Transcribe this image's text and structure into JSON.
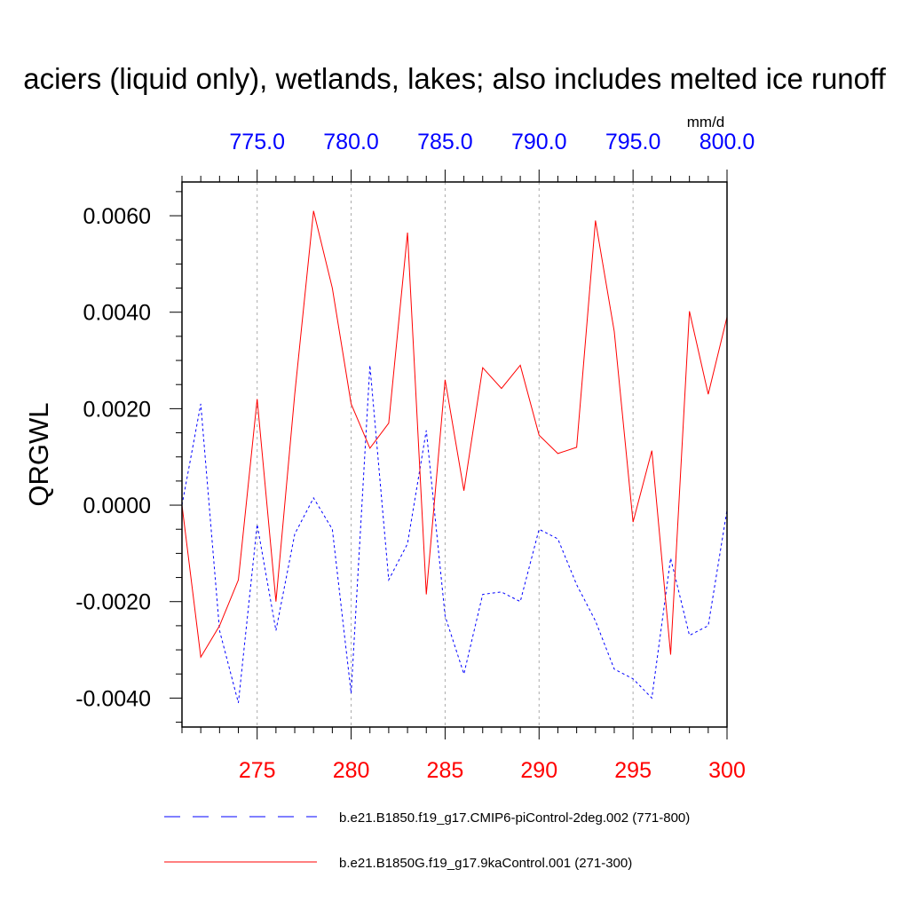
{
  "chart_data": {
    "type": "line",
    "title": "aciers (liquid only), wetlands, lakes; also includes melted ice runoff",
    "units": "mm/d",
    "ylabel": "QRGWL",
    "ylim": [
      -0.0046,
      0.0067
    ],
    "yticks": [
      -0.004,
      -0.002,
      0.0,
      0.002,
      0.004,
      0.006
    ],
    "yticklabels": [
      "-0.0040",
      "-0.0020",
      "0.0000",
      "0.0020",
      "0.0040",
      "0.0060"
    ],
    "x_bottom": {
      "range": [
        271,
        300
      ],
      "ticks": [
        275,
        280,
        285,
        290,
        295,
        300
      ],
      "ticklabels": [
        "275",
        "280",
        "285",
        "290",
        "295",
        "300"
      ],
      "color": "#ff0000"
    },
    "x_top": {
      "range": [
        771,
        800
      ],
      "ticks": [
        775,
        780,
        785,
        790,
        795,
        800
      ],
      "ticklabels": [
        "775.0",
        "780.0",
        "785.0",
        "790.0",
        "795.0",
        "800.0"
      ],
      "color": "#0000ff"
    },
    "grid": "vertical-dotted",
    "series": [
      {
        "name": "b.e21.B1850.f19_g17.CMIP6-piControl-2deg.002 (771-800)",
        "axis": "top",
        "color": "#0000ff",
        "style": "dashed",
        "x": [
          771,
          772,
          773,
          774,
          775,
          776,
          777,
          778,
          779,
          780,
          781,
          782,
          783,
          784,
          785,
          786,
          787,
          788,
          789,
          790,
          791,
          792,
          793,
          794,
          795,
          796,
          797,
          798,
          799,
          800
        ],
        "values": [
          0.0,
          0.0021,
          -0.0026,
          -0.0041,
          -0.0004,
          -0.0026,
          -0.0006,
          0.00015,
          -0.0005,
          -0.0039,
          0.0029,
          -0.00155,
          -0.0008,
          0.00155,
          -0.0023,
          -0.0035,
          -0.00185,
          -0.0018,
          -0.002,
          -0.0005,
          -0.0007,
          -0.00165,
          -0.0024,
          -0.0034,
          -0.0036,
          -0.004,
          -0.0011,
          -0.0027,
          -0.0025,
          -0.0001
        ]
      },
      {
        "name": "b.e21.B1850G.f19_g17.9kaControl.001 (271-300)",
        "axis": "bottom",
        "color": "#ff0000",
        "style": "solid",
        "x": [
          271,
          272,
          273,
          274,
          275,
          276,
          277,
          278,
          279,
          280,
          281,
          282,
          283,
          284,
          285,
          286,
          287,
          288,
          289,
          290,
          291,
          292,
          293,
          294,
          295,
          296,
          297,
          298,
          299,
          300
        ],
        "values": [
          0.0,
          -0.00315,
          -0.0025,
          -0.00155,
          0.0022,
          -0.002,
          0.0023,
          0.0061,
          0.0045,
          0.0021,
          0.00118,
          0.0017,
          0.00565,
          -0.00185,
          0.0026,
          0.0003,
          0.00285,
          0.00242,
          0.0029,
          0.00145,
          0.00107,
          0.0012,
          0.0059,
          0.0036,
          -0.00035,
          0.00113,
          -0.0031,
          0.00402,
          0.0023,
          0.0039
        ]
      }
    ],
    "legend": {
      "placement": "bottom",
      "entries": [
        "b.e21.B1850.f19_g17.CMIP6-piControl-2deg.002 (771-800)",
        "b.e21.B1850G.f19_g17.9kaControl.001 (271-300)"
      ]
    }
  }
}
